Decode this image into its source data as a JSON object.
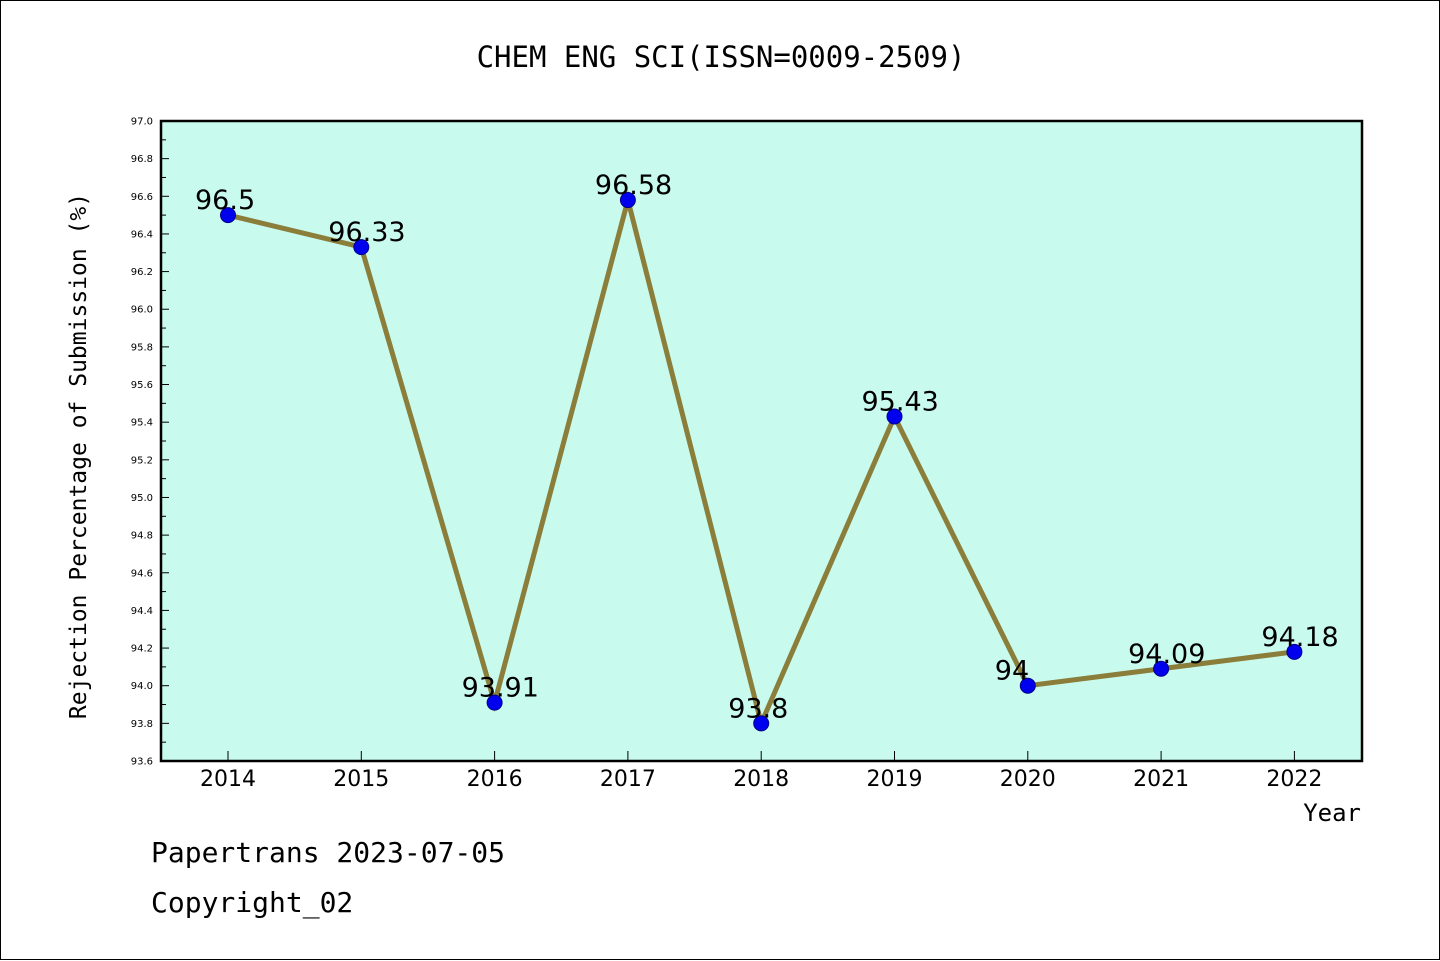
{
  "chart_data": {
    "type": "line",
    "title": "CHEM ENG SCI(ISSN=0009-2509)",
    "xlabel": "Year",
    "ylabel": "Rejection Percentage of Submission (%)",
    "categories": [
      "2014",
      "2015",
      "2016",
      "2017",
      "2018",
      "2019",
      "2020",
      "2021",
      "2022"
    ],
    "values": [
      96.5,
      96.33,
      93.91,
      96.58,
      93.8,
      95.43,
      94.0,
      94.09,
      94.18
    ],
    "data_labels": [
      "96.5",
      "96.33",
      "93.91",
      "96.58",
      "93.8",
      "95.43",
      "94",
      "94.09",
      "94.18"
    ],
    "ylim": [
      93.6,
      97.0
    ],
    "yticks": [
      "93.6",
      "93.8",
      "94.0",
      "94.2",
      "94.4",
      "94.6",
      "94.8",
      "95.0",
      "95.2",
      "95.4",
      "95.6",
      "95.8",
      "96.0",
      "96.2",
      "96.4",
      "96.6",
      "96.8",
      "97.0"
    ],
    "grid": false,
    "colors": {
      "plot_background": "#c8fbee",
      "line": "#8b7d3a",
      "marker": "#0000ee"
    }
  },
  "footer": {
    "line1": "Papertrans 2023-07-05",
    "line2": "Copyright_02"
  }
}
